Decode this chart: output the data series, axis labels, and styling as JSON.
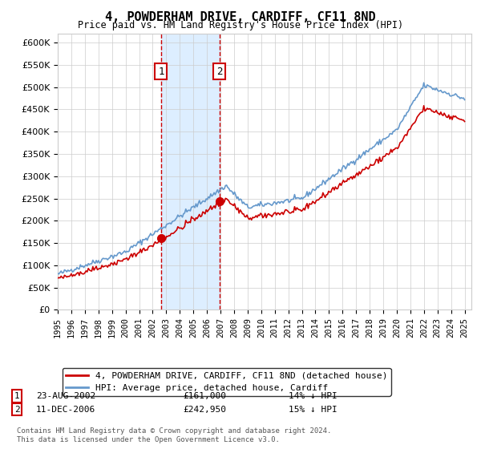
{
  "title": "4, POWDERHAM DRIVE, CARDIFF, CF11 8ND",
  "subtitle": "Price paid vs. HM Land Registry's House Price Index (HPI)",
  "ylim": [
    0,
    620000
  ],
  "xlim_start": 1995,
  "xlim_end": 2025.5,
  "hpi_color": "#6699cc",
  "price_color": "#cc0000",
  "shade_color": "#ddeeff",
  "transaction1_date": "23-AUG-2002",
  "transaction1_price": 161000,
  "transaction1_x": 2002.62,
  "transaction1_pct": "14% ↓ HPI",
  "transaction2_date": "11-DEC-2006",
  "transaction2_price": 242950,
  "transaction2_x": 2006.92,
  "transaction2_pct": "15% ↓ HPI",
  "footer": "Contains HM Land Registry data © Crown copyright and database right 2024.\nThis data is licensed under the Open Government Licence v3.0.",
  "legend_line1": "4, POWDERHAM DRIVE, CARDIFF, CF11 8ND (detached house)",
  "legend_line2": "HPI: Average price, detached house, Cardiff"
}
